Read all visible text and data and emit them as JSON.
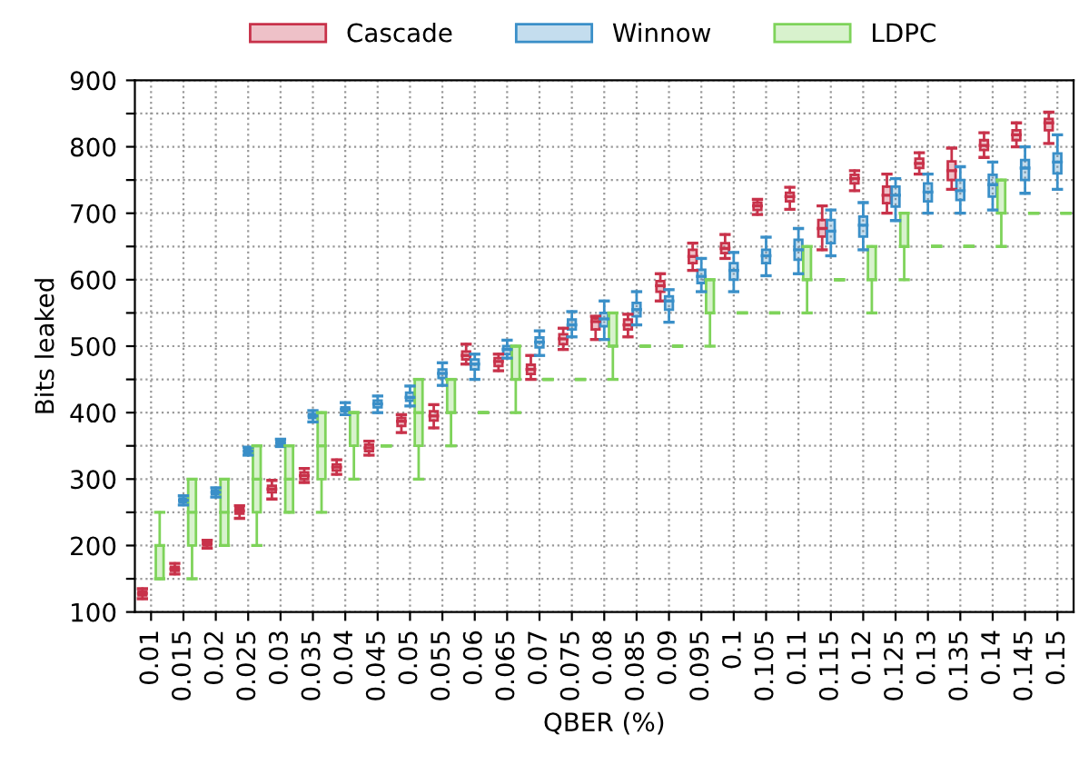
{
  "chart_data": {
    "type": "box",
    "xlabel": "QBER (%)",
    "ylabel": "Bits leaked",
    "categories": [
      "0.01",
      "0.015",
      "0.02",
      "0.025",
      "0.03",
      "0.035",
      "0.04",
      "0.045",
      "0.05",
      "0.055",
      "0.06",
      "0.065",
      "0.07",
      "0.075",
      "0.08",
      "0.085",
      "0.09",
      "0.095",
      "0.1",
      "0.105",
      "0.11",
      "0.115",
      "0.12",
      "0.125",
      "0.13",
      "0.135",
      "0.14",
      "0.145",
      "0.15"
    ],
    "ylim": [
      100,
      900
    ],
    "yticks": [
      100,
      {
        "value": 150,
        "label": null
      },
      200,
      {
        "value": 250,
        "label": null
      },
      300,
      {
        "value": 350,
        "label": null
      },
      400,
      {
        "value": 450,
        "label": null
      },
      500,
      {
        "value": 550,
        "label": null
      },
      600,
      {
        "value": 650,
        "label": null
      },
      700,
      {
        "value": 750,
        "label": null
      },
      800,
      {
        "value": 850,
        "label": null
      },
      900
    ],
    "grid": true,
    "legend": "top",
    "series": [
      {
        "name": "Cascade",
        "color": "#c8324a",
        "boxes": [
          {
            "low": 120,
            "q1": 125,
            "median": 128,
            "q3": 131,
            "high": 135
          },
          {
            "low": 157,
            "q1": 162,
            "median": 165,
            "q3": 168,
            "high": 173
          },
          {
            "low": 196,
            "q1": 200,
            "median": 203,
            "q3": 205,
            "high": 208
          },
          {
            "low": 241,
            "q1": 248,
            "median": 252,
            "q3": 256,
            "high": 260
          },
          {
            "low": 270,
            "q1": 280,
            "median": 285,
            "q3": 290,
            "high": 298
          },
          {
            "low": 295,
            "q1": 300,
            "median": 305,
            "q3": 310,
            "high": 316
          },
          {
            "low": 307,
            "q1": 313,
            "median": 318,
            "q3": 322,
            "high": 329
          },
          {
            "low": 336,
            "q1": 342,
            "median": 347,
            "q3": 352,
            "high": 357
          },
          {
            "low": 370,
            "q1": 380,
            "median": 387,
            "q3": 392,
            "high": 397
          },
          {
            "low": 377,
            "q1": 388,
            "median": 395,
            "q3": 402,
            "high": 412
          },
          {
            "low": 473,
            "q1": 480,
            "median": 486,
            "q3": 492,
            "high": 503
          },
          {
            "low": 463,
            "q1": 470,
            "median": 477,
            "q3": 482,
            "high": 488
          },
          {
            "low": 450,
            "q1": 458,
            "median": 465,
            "q3": 472,
            "high": 486
          },
          {
            "low": 495,
            "q1": 503,
            "median": 511,
            "q3": 518,
            "high": 527
          },
          {
            "low": 510,
            "q1": 525,
            "median": 537,
            "q3": 542,
            "high": 545
          },
          {
            "low": 514,
            "q1": 525,
            "median": 532,
            "q3": 540,
            "high": 548
          },
          {
            "low": 568,
            "q1": 582,
            "median": 591,
            "q3": 598,
            "high": 609
          },
          {
            "low": 614,
            "q1": 625,
            "median": 635,
            "q3": 645,
            "high": 655
          },
          {
            "low": 632,
            "q1": 640,
            "median": 647,
            "q3": 655,
            "high": 668
          },
          {
            "low": 698,
            "q1": 705,
            "median": 711,
            "q3": 716,
            "high": 721
          },
          {
            "low": 706,
            "q1": 718,
            "median": 725,
            "q3": 731,
            "high": 739
          },
          {
            "low": 645,
            "q1": 665,
            "median": 677,
            "q3": 690,
            "high": 711
          },
          {
            "low": 734,
            "q1": 745,
            "median": 752,
            "q3": 758,
            "high": 764
          },
          {
            "low": 700,
            "q1": 715,
            "median": 727,
            "q3": 740,
            "high": 759
          },
          {
            "low": 759,
            "q1": 768,
            "median": 775,
            "q3": 782,
            "high": 791
          },
          {
            "low": 736,
            "q1": 750,
            "median": 764,
            "q3": 778,
            "high": 798
          },
          {
            "low": 784,
            "q1": 795,
            "median": 802,
            "q3": 810,
            "high": 821
          },
          {
            "low": 800,
            "q1": 810,
            "median": 818,
            "q3": 825,
            "high": 836
          },
          {
            "low": 805,
            "q1": 825,
            "median": 836,
            "q3": 842,
            "high": 852
          }
        ]
      },
      {
        "name": "Winnow",
        "color": "#3a8fc8",
        "boxes": [
          null,
          {
            "low": 261,
            "q1": 265,
            "median": 268,
            "q3": 271,
            "high": 275
          },
          {
            "low": 273,
            "q1": 277,
            "median": 280,
            "q3": 283,
            "high": 287
          },
          {
            "low": 336,
            "q1": 339,
            "median": 342,
            "q3": 345,
            "high": 348
          },
          {
            "low": 349,
            "q1": 352,
            "median": 355,
            "q3": 358,
            "high": 360
          },
          {
            "low": 386,
            "q1": 392,
            "median": 395,
            "q3": 398,
            "high": 403
          },
          {
            "low": 397,
            "q1": 402,
            "median": 405,
            "q3": 408,
            "high": 415
          },
          {
            "low": 400,
            "q1": 408,
            "median": 413,
            "q3": 418,
            "high": 425
          },
          {
            "low": 410,
            "q1": 418,
            "median": 423,
            "q3": 430,
            "high": 440
          },
          {
            "low": 441,
            "q1": 452,
            "median": 459,
            "q3": 465,
            "high": 475
          },
          {
            "low": 450,
            "q1": 465,
            "median": 473,
            "q3": 480,
            "high": 488
          },
          {
            "low": 482,
            "q1": 488,
            "median": 495,
            "q3": 500,
            "high": 509
          },
          {
            "low": 486,
            "q1": 498,
            "median": 506,
            "q3": 513,
            "high": 523
          },
          {
            "low": 514,
            "q1": 525,
            "median": 532,
            "q3": 540,
            "high": 552
          },
          {
            "low": 510,
            "q1": 530,
            "median": 541,
            "q3": 550,
            "high": 568
          },
          {
            "low": 532,
            "q1": 545,
            "median": 555,
            "q3": 565,
            "high": 582
          },
          {
            "low": 536,
            "q1": 555,
            "median": 568,
            "q3": 575,
            "high": 585
          },
          {
            "low": 582,
            "q1": 595,
            "median": 605,
            "q3": 615,
            "high": 632
          },
          {
            "low": 582,
            "q1": 600,
            "median": 614,
            "q3": 625,
            "high": 641
          },
          {
            "low": 606,
            "q1": 625,
            "median": 636,
            "q3": 645,
            "high": 664
          },
          {
            "low": 609,
            "q1": 630,
            "median": 645,
            "q3": 660,
            "high": 677
          },
          {
            "low": 636,
            "q1": 655,
            "median": 673,
            "q3": 690,
            "high": 705
          },
          {
            "low": 645,
            "q1": 665,
            "median": 682,
            "q3": 695,
            "high": 716
          },
          {
            "low": 689,
            "q1": 710,
            "median": 727,
            "q3": 740,
            "high": 752
          },
          {
            "low": 700,
            "q1": 718,
            "median": 732,
            "q3": 745,
            "high": 759
          },
          {
            "low": 700,
            "q1": 720,
            "median": 734,
            "q3": 750,
            "high": 770
          },
          {
            "low": 705,
            "q1": 725,
            "median": 743,
            "q3": 758,
            "high": 777
          },
          {
            "low": 730,
            "q1": 750,
            "median": 768,
            "q3": 780,
            "high": 800
          },
          {
            "low": 736,
            "q1": 760,
            "median": 777,
            "q3": 790,
            "high": 818
          }
        ]
      },
      {
        "name": "LDPC",
        "color": "#7ed35a",
        "boxes": [
          {
            "low": 150,
            "q1": 150,
            "median": 200,
            "q3": 200,
            "high": 250
          },
          {
            "low": 150,
            "q1": 200,
            "median": 250,
            "q3": 300,
            "high": 300
          },
          {
            "low": 200,
            "q1": 200,
            "median": 250,
            "q3": 300,
            "high": 300
          },
          {
            "low": 200,
            "q1": 250,
            "median": 300,
            "q3": 350,
            "high": 350
          },
          {
            "low": 250,
            "q1": 250,
            "median": 300,
            "q3": 350,
            "high": 350
          },
          {
            "low": 250,
            "q1": 300,
            "median": 350,
            "q3": 400,
            "high": 400
          },
          {
            "low": 300,
            "q1": 350,
            "median": 400,
            "q3": 400,
            "high": 400
          },
          {
            "low": 350,
            "q1": 350,
            "median": 350,
            "q3": 350,
            "high": 350
          },
          {
            "low": 300,
            "q1": 350,
            "median": 400,
            "q3": 450,
            "high": 450
          },
          {
            "low": 350,
            "q1": 400,
            "median": 400,
            "q3": 450,
            "high": 450
          },
          {
            "low": 400,
            "q1": 400,
            "median": 400,
            "q3": 400,
            "high": 400
          },
          {
            "low": 400,
            "q1": 450,
            "median": 450,
            "q3": 500,
            "high": 500
          },
          {
            "low": 450,
            "q1": 450,
            "median": 450,
            "q3": 450,
            "high": 450
          },
          {
            "low": 450,
            "q1": 450,
            "median": 450,
            "q3": 450,
            "high": 450
          },
          {
            "low": 450,
            "q1": 500,
            "median": 500,
            "q3": 550,
            "high": 550
          },
          {
            "low": 500,
            "q1": 500,
            "median": 500,
            "q3": 500,
            "high": 500
          },
          {
            "low": 500,
            "q1": 500,
            "median": 500,
            "q3": 500,
            "high": 500
          },
          {
            "low": 500,
            "q1": 550,
            "median": 550,
            "q3": 600,
            "high": 600
          },
          {
            "low": 550,
            "q1": 550,
            "median": 550,
            "q3": 550,
            "high": 550
          },
          {
            "low": 550,
            "q1": 550,
            "median": 550,
            "q3": 550,
            "high": 550
          },
          {
            "low": 550,
            "q1": 600,
            "median": 600,
            "q3": 650,
            "high": 650
          },
          {
            "low": 600,
            "q1": 600,
            "median": 600,
            "q3": 600,
            "high": 600
          },
          {
            "low": 550,
            "q1": 600,
            "median": 600,
            "q3": 650,
            "high": 650
          },
          {
            "low": 600,
            "q1": 650,
            "median": 650,
            "q3": 700,
            "high": 700
          },
          {
            "low": 650,
            "q1": 650,
            "median": 650,
            "q3": 650,
            "high": 650
          },
          {
            "low": 650,
            "q1": 650,
            "median": 650,
            "q3": 650,
            "high": 650
          },
          {
            "low": 650,
            "q1": 700,
            "median": 700,
            "q3": 750,
            "high": 750
          },
          {
            "low": 700,
            "q1": 700,
            "median": 700,
            "q3": 700,
            "high": 700
          },
          {
            "low": 700,
            "q1": 700,
            "median": 700,
            "q3": 700,
            "high": 700
          }
        ]
      }
    ]
  }
}
